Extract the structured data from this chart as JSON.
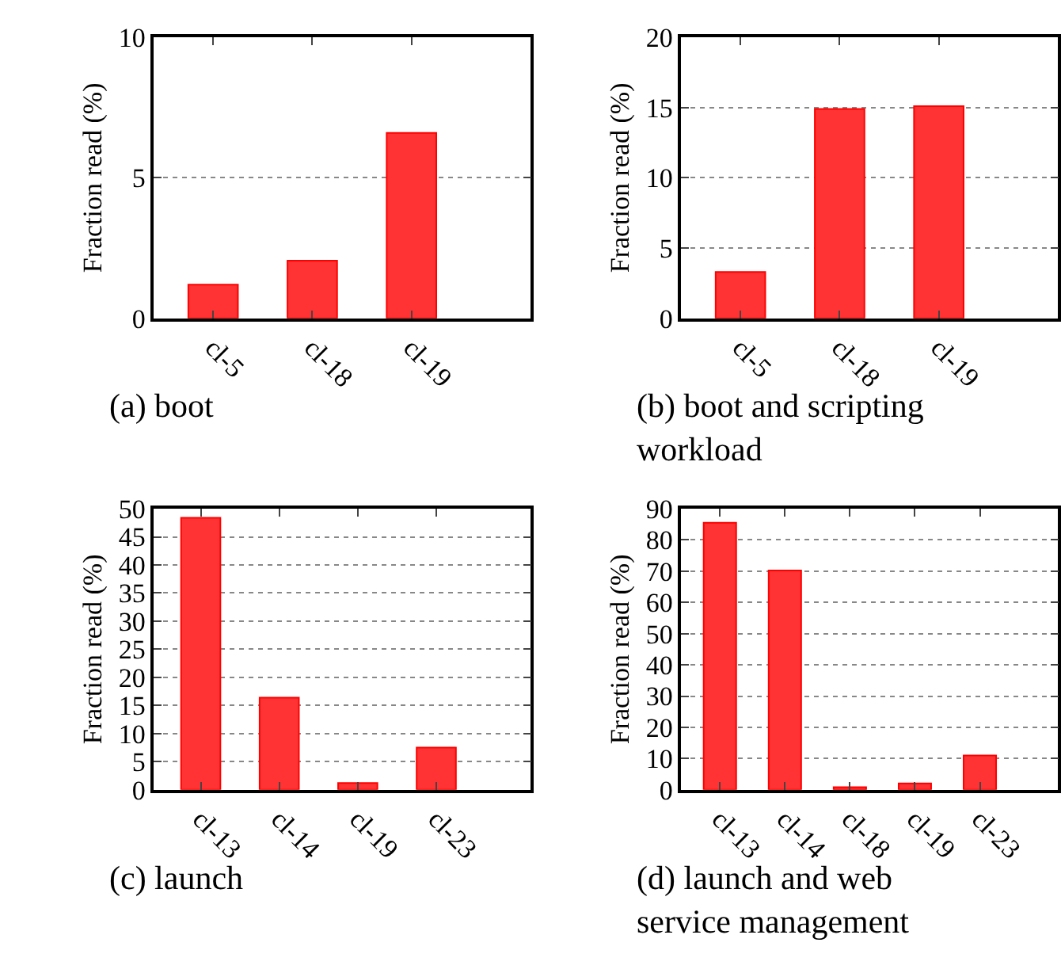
{
  "chart_data": [
    {
      "type": "bar",
      "title": "(a) boot",
      "ylabel": "Fraction read (%)",
      "categories": [
        "cl-5",
        "cl-18",
        "cl-19"
      ],
      "values": [
        1.2,
        2.05,
        6.6
      ],
      "color": "#ff3333",
      "ylim": [
        0,
        10
      ],
      "yticks": [
        0,
        5,
        10
      ],
      "grid": "y"
    },
    {
      "type": "bar",
      "title": "(b) boot and scripting workload",
      "ylabel": "Fraction read (%)",
      "categories": [
        "cl-5",
        "cl-18",
        "cl-19"
      ],
      "values": [
        3.3,
        14.9,
        15.1
      ],
      "color": "#ff3333",
      "ylim": [
        0,
        20
      ],
      "yticks": [
        0,
        5,
        10,
        15,
        20
      ],
      "grid": "y"
    },
    {
      "type": "bar",
      "title": "(c) launch",
      "ylabel": "Fraction read (%)",
      "categories": [
        "cl-13",
        "cl-14",
        "cl-19",
        "cl-23"
      ],
      "values": [
        48.4,
        16.4,
        1.2,
        7.5
      ],
      "color": "#ff3333",
      "ylim": [
        0,
        50
      ],
      "yticks": [
        0,
        5,
        10,
        15,
        20,
        25,
        30,
        35,
        40,
        45,
        50
      ],
      "grid": "y"
    },
    {
      "type": "bar",
      "title": "(d) launch and web service management",
      "ylabel": "Fraction read (%)",
      "categories": [
        "cl-13",
        "cl-14",
        "cl-18",
        "cl-19",
        "cl-23"
      ],
      "values": [
        85.5,
        70.2,
        0.8,
        2,
        11
      ],
      "color": "#ff3333",
      "ylim": [
        0,
        90
      ],
      "yticks": [
        0,
        10,
        20,
        30,
        40,
        50,
        60,
        70,
        80,
        90
      ],
      "grid": "y"
    }
  ]
}
